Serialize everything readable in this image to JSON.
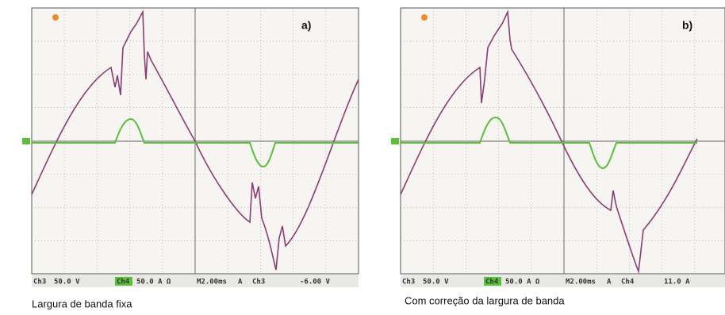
{
  "panels": [
    {
      "label": "a)",
      "status": {
        "ch3": "Ch3",
        "ch3_scale": "50.0 V",
        "ch4": "Ch4",
        "ch4_scale": "50.0 A Ω",
        "time": "M2.00ms",
        "trigger_mode": "A",
        "trigger_channel": "Ch3",
        "trigger_level": "-6.00 V"
      },
      "caption": "Largura de banda fixa"
    },
    {
      "label": "b)",
      "status": {
        "ch3": "Ch3",
        "ch3_scale": "50.0 V",
        "ch4": "Ch4",
        "ch4_scale": "50.0 A Ω",
        "time": "M2.00ms",
        "trigger_mode": "A",
        "trigger_channel": "Ch4",
        "trigger_level": "11.0 A"
      },
      "caption": "Com correção da largura de banda"
    }
  ]
}
